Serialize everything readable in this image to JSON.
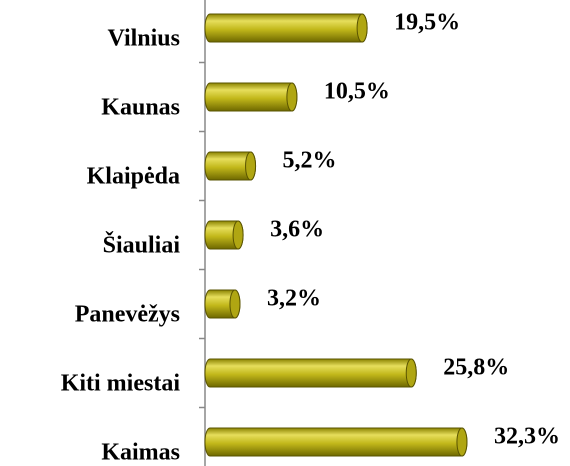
{
  "chart_data": {
    "type": "bar",
    "orientation": "horizontal",
    "categories": [
      "Vilnius",
      "Kaunas",
      "Klaipėda",
      "Šiauliai",
      "Panevėžys",
      "Kiti miestai",
      "Kaimas"
    ],
    "values": [
      19.5,
      10.5,
      5.2,
      3.6,
      3.2,
      25.8,
      32.3
    ],
    "value_labels": [
      "19,5%",
      "10,5%",
      "5,2%",
      "3,6%",
      "3,2%",
      "25,8%",
      "32,3%"
    ],
    "color": "#c2b81a"
  }
}
